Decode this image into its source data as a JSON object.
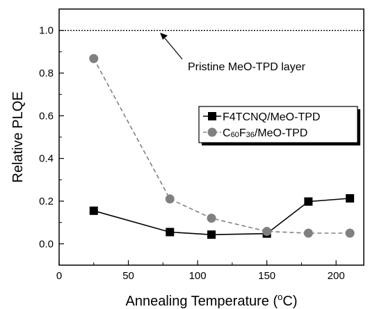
{
  "chart_data": {
    "type": "line",
    "xlabel": "Annealing Temperature",
    "xlabel_unit_prefix": "(",
    "xlabel_unit_sup": "o",
    "xlabel_unit_suffix": "C)",
    "ylabel": "Relative PLQE",
    "xlim": [
      0,
      220
    ],
    "ylim": [
      -0.1,
      1.1
    ],
    "xticks": [
      0,
      50,
      100,
      150,
      200
    ],
    "xtick_labels": [
      "0",
      "50",
      "100",
      "150",
      "200"
    ],
    "yticks": [
      0.0,
      0.2,
      0.4,
      0.6,
      0.8,
      1.0
    ],
    "ytick_labels": [
      "0.0",
      "0.2",
      "0.4",
      "0.6",
      "0.8",
      "1.0"
    ],
    "grid": false,
    "legend_position": "center-right",
    "reference_line": {
      "y": 1.0,
      "style": "dotted",
      "label": "Pristine MeO-TPD layer"
    },
    "series": [
      {
        "name": "F4TCNQ/MeO-TPD",
        "marker": "square",
        "line_style": "solid",
        "color": "#000000",
        "x": [
          25,
          80,
          110,
          150,
          180,
          210
        ],
        "y": [
          0.155,
          0.055,
          0.043,
          0.048,
          0.198,
          0.213
        ]
      },
      {
        "name": "C60F36/MeO-TPD",
        "legend_main_1": "C",
        "legend_sub_1": "60",
        "legend_main_2": "F",
        "legend_sub_2": "36",
        "legend_main_3": "/MeO-TPD",
        "marker": "circle",
        "line_style": "dashed",
        "color": "#808080",
        "x": [
          25,
          80,
          110,
          150,
          180,
          210
        ],
        "y": [
          0.868,
          0.21,
          0.12,
          0.058,
          0.05,
          0.05
        ]
      }
    ]
  }
}
